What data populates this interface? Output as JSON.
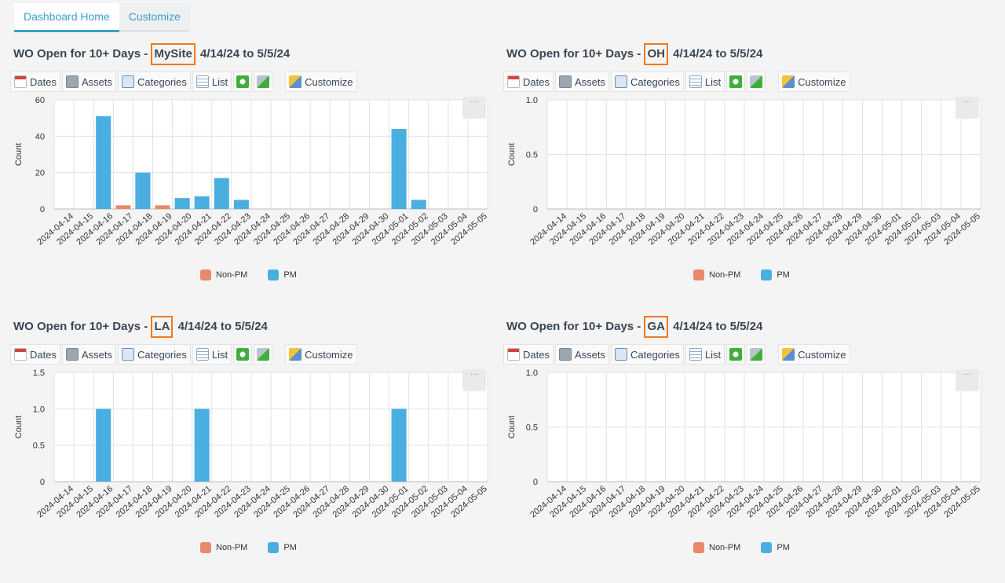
{
  "tabs": [
    {
      "label": "Dashboard Home",
      "active": true
    },
    {
      "label": "Customize",
      "active": false
    }
  ],
  "toolbar": {
    "dates": "Dates",
    "assets": "Assets",
    "categories": "Categories",
    "list": "List",
    "customize": "Customize",
    "icons": {
      "dates": "calendar-icon",
      "assets": "assets-icon",
      "categories": "categories-icon",
      "list": "list-icon",
      "expand": "expand-icon",
      "refresh": "refresh-icon",
      "customize": "customize-icon"
    }
  },
  "widgets": [
    {
      "title_prefix": "WO Open for 10+ Days - ",
      "site": "MySite",
      "date_range": " 4/14/24 to 5/5/24",
      "menu": "···",
      "legend": [
        {
          "name": "Non-PM",
          "color": "#e8896a"
        },
        {
          "name": "PM",
          "color": "#4aaee0"
        }
      ]
    },
    {
      "title_prefix": "WO Open for 10+ Days - ",
      "site": "OH",
      "date_range": " 4/14/24 to 5/5/24",
      "menu": "···",
      "legend": [
        {
          "name": "Non-PM",
          "color": "#e8896a"
        },
        {
          "name": "PM",
          "color": "#4aaee0"
        }
      ]
    },
    {
      "title_prefix": "WO Open for 10+ Days - ",
      "site": "LA",
      "date_range": " 4/14/24 to 5/5/24",
      "menu": "···",
      "legend": [
        {
          "name": "Non-PM",
          "color": "#e8896a"
        },
        {
          "name": "PM",
          "color": "#4aaee0"
        }
      ]
    },
    {
      "title_prefix": "WO Open for 10+ Days - ",
      "site": "GA",
      "date_range": " 4/14/24 to 5/5/24",
      "menu": "···",
      "legend": [
        {
          "name": "Non-PM",
          "color": "#e8896a"
        },
        {
          "name": "PM",
          "color": "#4aaee0"
        }
      ]
    }
  ],
  "chart_data": [
    {
      "type": "bar",
      "categories": [
        "2024-04-14",
        "2024-04-15",
        "2024-04-16",
        "2024-04-17",
        "2024-04-18",
        "2024-04-19",
        "2024-04-20",
        "2024-04-21",
        "2024-04-22",
        "2024-04-23",
        "2024-04-24",
        "2024-04-25",
        "2024-04-26",
        "2024-04-27",
        "2024-04-28",
        "2024-04-29",
        "2024-04-30",
        "2024-05-01",
        "2024-05-02",
        "2024-05-03",
        "2024-05-04",
        "2024-05-05"
      ],
      "series": [
        {
          "name": "Non-PM",
          "color": "#e8896a",
          "values": [
            0,
            0,
            0,
            2,
            0,
            2,
            0,
            0,
            0,
            0,
            0,
            0,
            0,
            0,
            0,
            0,
            0,
            0,
            0,
            0,
            0,
            0
          ]
        },
        {
          "name": "PM",
          "color": "#4aaee0",
          "values": [
            0,
            0,
            51,
            0,
            20,
            0,
            6,
            7,
            17,
            5,
            0,
            0,
            0,
            0,
            0,
            0,
            0,
            44,
            5,
            0,
            0,
            0
          ]
        }
      ],
      "ylabel": "Count",
      "yticks": [
        "0",
        "20",
        "40",
        "60"
      ],
      "ylim": [
        0,
        60
      ],
      "grid": true,
      "legend": "bottom"
    },
    {
      "type": "bar",
      "categories": [
        "2024-04-14",
        "2024-04-15",
        "2024-04-16",
        "2024-04-17",
        "2024-04-18",
        "2024-04-19",
        "2024-04-20",
        "2024-04-21",
        "2024-04-22",
        "2024-04-23",
        "2024-04-24",
        "2024-04-25",
        "2024-04-26",
        "2024-04-27",
        "2024-04-28",
        "2024-04-29",
        "2024-04-30",
        "2024-05-01",
        "2024-05-02",
        "2024-05-03",
        "2024-05-04",
        "2024-05-05"
      ],
      "series": [
        {
          "name": "Non-PM",
          "color": "#e8896a",
          "values": [
            0,
            0,
            0,
            0,
            0,
            0,
            0,
            0,
            0,
            0,
            0,
            0,
            0,
            0,
            0,
            0,
            0,
            0,
            0,
            0,
            0,
            0
          ]
        },
        {
          "name": "PM",
          "color": "#4aaee0",
          "values": [
            0,
            0,
            0,
            0,
            0,
            0,
            0,
            0,
            0,
            0,
            0,
            0,
            0,
            0,
            0,
            0,
            0,
            0,
            0,
            0,
            0,
            0
          ]
        }
      ],
      "ylabel": "Count",
      "yticks": [
        "0",
        "0.5",
        "1.0"
      ],
      "ylim": [
        0,
        1
      ],
      "grid": true,
      "legend": "bottom"
    },
    {
      "type": "bar",
      "categories": [
        "2024-04-14",
        "2024-04-15",
        "2024-04-16",
        "2024-04-17",
        "2024-04-18",
        "2024-04-19",
        "2024-04-20",
        "2024-04-21",
        "2024-04-22",
        "2024-04-23",
        "2024-04-24",
        "2024-04-25",
        "2024-04-26",
        "2024-04-27",
        "2024-04-28",
        "2024-04-29",
        "2024-04-30",
        "2024-05-01",
        "2024-05-02",
        "2024-05-03",
        "2024-05-04",
        "2024-05-05"
      ],
      "series": [
        {
          "name": "Non-PM",
          "color": "#e8896a",
          "values": [
            0,
            0,
            0,
            0,
            0,
            0,
            0,
            0,
            0,
            0,
            0,
            0,
            0,
            0,
            0,
            0,
            0,
            0,
            0,
            0,
            0,
            0
          ]
        },
        {
          "name": "PM",
          "color": "#4aaee0",
          "values": [
            0,
            0,
            1,
            0,
            0,
            0,
            0,
            1,
            0,
            0,
            0,
            0,
            0,
            0,
            0,
            0,
            0,
            1,
            0,
            0,
            0,
            0
          ]
        }
      ],
      "ylabel": "Count",
      "yticks": [
        "0",
        "0.5",
        "1.0",
        "1.5"
      ],
      "ylim": [
        0,
        1.5
      ],
      "grid": true,
      "legend": "bottom"
    },
    {
      "type": "bar",
      "categories": [
        "2024-04-14",
        "2024-04-15",
        "2024-04-16",
        "2024-04-17",
        "2024-04-18",
        "2024-04-19",
        "2024-04-20",
        "2024-04-21",
        "2024-04-22",
        "2024-04-23",
        "2024-04-24",
        "2024-04-25",
        "2024-04-26",
        "2024-04-27",
        "2024-04-28",
        "2024-04-29",
        "2024-04-30",
        "2024-05-01",
        "2024-05-02",
        "2024-05-03",
        "2024-05-04",
        "2024-05-05"
      ],
      "series": [
        {
          "name": "Non-PM",
          "color": "#e8896a",
          "values": [
            0,
            0,
            0,
            0,
            0,
            0,
            0,
            0,
            0,
            0,
            0,
            0,
            0,
            0,
            0,
            0,
            0,
            0,
            0,
            0,
            0,
            0
          ]
        },
        {
          "name": "PM",
          "color": "#4aaee0",
          "values": [
            0,
            0,
            0,
            0,
            0,
            0,
            0,
            0,
            0,
            0,
            0,
            0,
            0,
            0,
            0,
            0,
            0,
            0,
            0,
            0,
            0,
            0
          ]
        }
      ],
      "ylabel": "Count",
      "yticks": [
        "0",
        "0.5",
        "1.0"
      ],
      "ylim": [
        0,
        1
      ],
      "grid": true,
      "legend": "bottom"
    }
  ]
}
